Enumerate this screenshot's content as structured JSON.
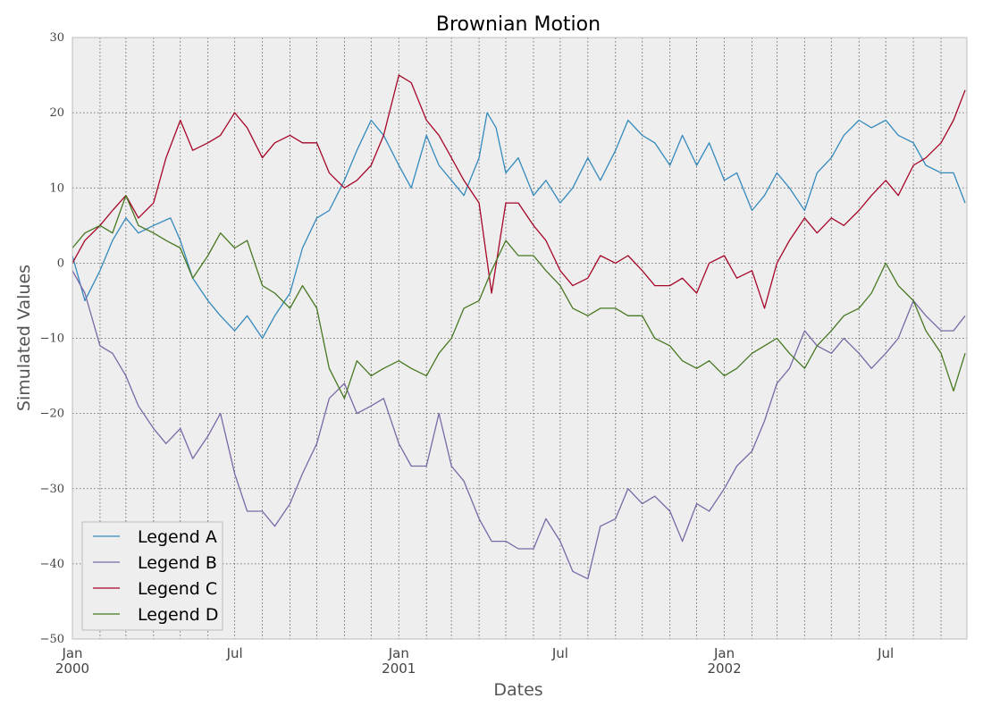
{
  "chart_data": {
    "type": "line",
    "title": "Brownian Motion",
    "xlabel": "Dates",
    "ylabel": "Simulated Values",
    "x_range": [
      "2000-01-01",
      "2002-09-30"
    ],
    "ylim": [
      -50,
      30
    ],
    "yticks": [
      -50,
      -40,
      -30,
      -20,
      -10,
      0,
      10,
      20,
      30
    ],
    "ytick_labels": [
      "−50",
      "−40",
      "−30",
      "−20",
      "−10",
      "0",
      "10",
      "20",
      "30"
    ],
    "xticks": [
      {
        "date": "2000-01-01",
        "label": "Jan",
        "sublabel": "2000"
      },
      {
        "date": "2000-07-01",
        "label": "Jul",
        "sublabel": ""
      },
      {
        "date": "2001-01-01",
        "label": "Jan",
        "sublabel": "2001"
      },
      {
        "date": "2001-07-01",
        "label": "Jul",
        "sublabel": ""
      },
      {
        "date": "2002-01-01",
        "label": "Jan",
        "sublabel": "2002"
      },
      {
        "date": "2002-07-01",
        "label": "Jul",
        "sublabel": ""
      }
    ],
    "minor_grid_dates": [
      "2000-02-01",
      "2000-03-01",
      "2000-04-01",
      "2000-05-01",
      "2000-06-01",
      "2000-08-01",
      "2000-09-01",
      "2000-10-01",
      "2000-11-01",
      "2000-12-01",
      "2001-02-01",
      "2001-03-01",
      "2001-04-01",
      "2001-05-01",
      "2001-06-01",
      "2001-08-01",
      "2001-09-01",
      "2001-10-01",
      "2001-11-01",
      "2001-12-01",
      "2002-02-01",
      "2002-03-01",
      "2002-04-01",
      "2002-05-01",
      "2002-06-01",
      "2002-08-01",
      "2002-09-01"
    ],
    "grid": true,
    "legend_position": "lower-left",
    "background_color": "#eeeeee",
    "series": [
      {
        "name": "Legend A",
        "color": "#348abd",
        "points": [
          [
            "2000-01-01",
            1
          ],
          [
            "2000-01-15",
            -5
          ],
          [
            "2000-02-01",
            -1
          ],
          [
            "2000-02-15",
            3
          ],
          [
            "2000-03-01",
            6
          ],
          [
            "2000-03-15",
            4
          ],
          [
            "2000-04-01",
            5
          ],
          [
            "2000-04-20",
            6
          ],
          [
            "2000-05-01",
            3
          ],
          [
            "2000-05-15",
            -2
          ],
          [
            "2000-06-01",
            -5
          ],
          [
            "2000-06-15",
            -7
          ],
          [
            "2000-07-01",
            -9
          ],
          [
            "2000-07-15",
            -7
          ],
          [
            "2000-08-01",
            -10
          ],
          [
            "2000-08-15",
            -7
          ],
          [
            "2000-09-01",
            -4
          ],
          [
            "2000-09-15",
            2
          ],
          [
            "2000-10-01",
            6
          ],
          [
            "2000-10-15",
            7
          ],
          [
            "2000-11-01",
            11
          ],
          [
            "2000-11-15",
            15
          ],
          [
            "2000-12-01",
            19
          ],
          [
            "2000-12-15",
            17
          ],
          [
            "2001-01-01",
            13
          ],
          [
            "2001-01-15",
            10
          ],
          [
            "2001-02-01",
            17
          ],
          [
            "2001-02-15",
            13
          ],
          [
            "2001-03-01",
            11
          ],
          [
            "2001-03-15",
            9
          ],
          [
            "2001-04-01",
            14
          ],
          [
            "2001-04-10",
            20
          ],
          [
            "2001-04-20",
            18
          ],
          [
            "2001-05-01",
            12
          ],
          [
            "2001-05-15",
            14
          ],
          [
            "2001-06-01",
            9
          ],
          [
            "2001-06-15",
            11
          ],
          [
            "2001-07-01",
            8
          ],
          [
            "2001-07-15",
            10
          ],
          [
            "2001-08-01",
            14
          ],
          [
            "2001-08-15",
            11
          ],
          [
            "2001-09-01",
            15
          ],
          [
            "2001-09-15",
            19
          ],
          [
            "2001-10-01",
            17
          ],
          [
            "2001-10-15",
            16
          ],
          [
            "2001-11-01",
            13
          ],
          [
            "2001-11-15",
            17
          ],
          [
            "2001-12-01",
            13
          ],
          [
            "2001-12-15",
            16
          ],
          [
            "2002-01-01",
            11
          ],
          [
            "2002-01-15",
            12
          ],
          [
            "2002-02-01",
            7
          ],
          [
            "2002-02-15",
            9
          ],
          [
            "2002-03-01",
            12
          ],
          [
            "2002-03-15",
            10
          ],
          [
            "2002-04-01",
            7
          ],
          [
            "2002-04-15",
            12
          ],
          [
            "2002-05-01",
            14
          ],
          [
            "2002-05-15",
            17
          ],
          [
            "2002-06-01",
            19
          ],
          [
            "2002-06-15",
            18
          ],
          [
            "2002-07-01",
            19
          ],
          [
            "2002-07-15",
            17
          ],
          [
            "2002-08-01",
            16
          ],
          [
            "2002-08-15",
            13
          ],
          [
            "2002-09-01",
            12
          ],
          [
            "2002-09-15",
            12
          ],
          [
            "2002-09-28",
            8
          ]
        ]
      },
      {
        "name": "Legend B",
        "color": "#7a68a6",
        "points": [
          [
            "2000-01-01",
            -1
          ],
          [
            "2000-01-15",
            -4
          ],
          [
            "2000-02-01",
            -11
          ],
          [
            "2000-02-15",
            -12
          ],
          [
            "2000-03-01",
            -15
          ],
          [
            "2000-03-15",
            -19
          ],
          [
            "2000-04-01",
            -22
          ],
          [
            "2000-04-15",
            -24
          ],
          [
            "2000-05-01",
            -22
          ],
          [
            "2000-05-15",
            -26
          ],
          [
            "2000-06-01",
            -23
          ],
          [
            "2000-06-15",
            -20
          ],
          [
            "2000-07-01",
            -28
          ],
          [
            "2000-07-15",
            -33
          ],
          [
            "2000-08-01",
            -33
          ],
          [
            "2000-08-15",
            -35
          ],
          [
            "2000-09-01",
            -32
          ],
          [
            "2000-09-15",
            -28
          ],
          [
            "2000-10-01",
            -24
          ],
          [
            "2000-10-15",
            -18
          ],
          [
            "2000-11-01",
            -16
          ],
          [
            "2000-11-15",
            -20
          ],
          [
            "2000-12-01",
            -19
          ],
          [
            "2000-12-15",
            -18
          ],
          [
            "2001-01-01",
            -24
          ],
          [
            "2001-01-15",
            -27
          ],
          [
            "2001-02-01",
            -27
          ],
          [
            "2001-02-15",
            -20
          ],
          [
            "2001-03-01",
            -27
          ],
          [
            "2001-03-15",
            -29
          ],
          [
            "2001-04-01",
            -34
          ],
          [
            "2001-04-15",
            -37
          ],
          [
            "2001-05-01",
            -37
          ],
          [
            "2001-05-15",
            -38
          ],
          [
            "2001-06-01",
            -38
          ],
          [
            "2001-06-15",
            -34
          ],
          [
            "2001-07-01",
            -37
          ],
          [
            "2001-07-15",
            -41
          ],
          [
            "2001-08-01",
            -42
          ],
          [
            "2001-08-15",
            -35
          ],
          [
            "2001-09-01",
            -34
          ],
          [
            "2001-09-15",
            -30
          ],
          [
            "2001-10-01",
            -32
          ],
          [
            "2001-10-15",
            -31
          ],
          [
            "2001-11-01",
            -33
          ],
          [
            "2001-11-15",
            -37
          ],
          [
            "2001-12-01",
            -32
          ],
          [
            "2001-12-15",
            -33
          ],
          [
            "2002-01-01",
            -30
          ],
          [
            "2002-01-15",
            -27
          ],
          [
            "2002-02-01",
            -25
          ],
          [
            "2002-02-15",
            -21
          ],
          [
            "2002-03-01",
            -16
          ],
          [
            "2002-03-15",
            -14
          ],
          [
            "2002-04-01",
            -9
          ],
          [
            "2002-04-15",
            -11
          ],
          [
            "2002-05-01",
            -12
          ],
          [
            "2002-05-15",
            -10
          ],
          [
            "2002-06-01",
            -12
          ],
          [
            "2002-06-15",
            -14
          ],
          [
            "2002-07-01",
            -12
          ],
          [
            "2002-07-15",
            -10
          ],
          [
            "2002-08-01",
            -5
          ],
          [
            "2002-08-15",
            -7
          ],
          [
            "2002-09-01",
            -9
          ],
          [
            "2002-09-15",
            -9
          ],
          [
            "2002-09-28",
            -7
          ]
        ]
      },
      {
        "name": "Legend C",
        "color": "#a60628",
        "points": [
          [
            "2000-01-01",
            0
          ],
          [
            "2000-01-15",
            3
          ],
          [
            "2000-02-01",
            5
          ],
          [
            "2000-02-15",
            7
          ],
          [
            "2000-03-01",
            9
          ],
          [
            "2000-03-15",
            6
          ],
          [
            "2000-04-01",
            8
          ],
          [
            "2000-04-15",
            14
          ],
          [
            "2000-05-01",
            19
          ],
          [
            "2000-05-15",
            15
          ],
          [
            "2000-06-01",
            16
          ],
          [
            "2000-06-15",
            17
          ],
          [
            "2000-07-01",
            20
          ],
          [
            "2000-07-15",
            18
          ],
          [
            "2000-08-01",
            14
          ],
          [
            "2000-08-15",
            16
          ],
          [
            "2000-09-01",
            17
          ],
          [
            "2000-09-15",
            16
          ],
          [
            "2000-10-01",
            16
          ],
          [
            "2000-10-15",
            12
          ],
          [
            "2000-11-01",
            10
          ],
          [
            "2000-11-15",
            11
          ],
          [
            "2000-12-01",
            13
          ],
          [
            "2000-12-15",
            17
          ],
          [
            "2001-01-01",
            25
          ],
          [
            "2001-01-15",
            24
          ],
          [
            "2001-02-01",
            19
          ],
          [
            "2001-02-15",
            17
          ],
          [
            "2001-03-01",
            14
          ],
          [
            "2001-03-15",
            11
          ],
          [
            "2001-04-01",
            8
          ],
          [
            "2001-04-15",
            -4
          ],
          [
            "2001-05-01",
            8
          ],
          [
            "2001-05-15",
            8
          ],
          [
            "2001-06-01",
            5
          ],
          [
            "2001-06-15",
            3
          ],
          [
            "2001-07-01",
            -1
          ],
          [
            "2001-07-15",
            -3
          ],
          [
            "2001-08-01",
            -2
          ],
          [
            "2001-08-15",
            1
          ],
          [
            "2001-09-01",
            0
          ],
          [
            "2001-09-15",
            1
          ],
          [
            "2001-10-01",
            -1
          ],
          [
            "2001-10-15",
            -3
          ],
          [
            "2001-11-01",
            -3
          ],
          [
            "2001-11-15",
            -2
          ],
          [
            "2001-12-01",
            -4
          ],
          [
            "2001-12-15",
            0
          ],
          [
            "2002-01-01",
            1
          ],
          [
            "2002-01-15",
            -2
          ],
          [
            "2002-02-01",
            -1
          ],
          [
            "2002-02-15",
            -6
          ],
          [
            "2002-03-01",
            0
          ],
          [
            "2002-03-15",
            3
          ],
          [
            "2002-04-01",
            6
          ],
          [
            "2002-04-15",
            4
          ],
          [
            "2002-05-01",
            6
          ],
          [
            "2002-05-15",
            5
          ],
          [
            "2002-06-01",
            7
          ],
          [
            "2002-06-15",
            9
          ],
          [
            "2002-07-01",
            11
          ],
          [
            "2002-07-15",
            9
          ],
          [
            "2002-08-01",
            13
          ],
          [
            "2002-08-15",
            14
          ],
          [
            "2002-09-01",
            16
          ],
          [
            "2002-09-15",
            19
          ],
          [
            "2002-09-28",
            23
          ]
        ]
      },
      {
        "name": "Legend D",
        "color": "#467821",
        "points": [
          [
            "2000-01-01",
            2
          ],
          [
            "2000-01-15",
            4
          ],
          [
            "2000-02-01",
            5
          ],
          [
            "2000-02-15",
            4
          ],
          [
            "2000-03-01",
            9
          ],
          [
            "2000-03-15",
            5
          ],
          [
            "2000-04-01",
            4
          ],
          [
            "2000-04-15",
            3
          ],
          [
            "2000-05-01",
            2
          ],
          [
            "2000-05-15",
            -2
          ],
          [
            "2000-06-01",
            1
          ],
          [
            "2000-06-15",
            4
          ],
          [
            "2000-07-01",
            2
          ],
          [
            "2000-07-15",
            3
          ],
          [
            "2000-08-01",
            -3
          ],
          [
            "2000-08-15",
            -4
          ],
          [
            "2000-09-01",
            -6
          ],
          [
            "2000-09-15",
            -3
          ],
          [
            "2000-10-01",
            -6
          ],
          [
            "2000-10-15",
            -14
          ],
          [
            "2000-11-01",
            -18
          ],
          [
            "2000-11-15",
            -13
          ],
          [
            "2000-12-01",
            -15
          ],
          [
            "2000-12-15",
            -14
          ],
          [
            "2001-01-01",
            -13
          ],
          [
            "2001-01-15",
            -14
          ],
          [
            "2001-02-01",
            -15
          ],
          [
            "2001-02-15",
            -12
          ],
          [
            "2001-03-01",
            -10
          ],
          [
            "2001-03-15",
            -6
          ],
          [
            "2001-04-01",
            -5
          ],
          [
            "2001-04-15",
            -1
          ],
          [
            "2001-05-01",
            3
          ],
          [
            "2001-05-15",
            1
          ],
          [
            "2001-06-01",
            1
          ],
          [
            "2001-06-15",
            -1
          ],
          [
            "2001-07-01",
            -3
          ],
          [
            "2001-07-15",
            -6
          ],
          [
            "2001-08-01",
            -7
          ],
          [
            "2001-08-15",
            -6
          ],
          [
            "2001-09-01",
            -6
          ],
          [
            "2001-09-15",
            -7
          ],
          [
            "2001-10-01",
            -7
          ],
          [
            "2001-10-15",
            -10
          ],
          [
            "2001-11-01",
            -11
          ],
          [
            "2001-11-15",
            -13
          ],
          [
            "2001-12-01",
            -14
          ],
          [
            "2001-12-15",
            -13
          ],
          [
            "2002-01-01",
            -15
          ],
          [
            "2002-01-15",
            -14
          ],
          [
            "2002-02-01",
            -12
          ],
          [
            "2002-02-15",
            -11
          ],
          [
            "2002-03-01",
            -10
          ],
          [
            "2002-03-15",
            -12
          ],
          [
            "2002-04-01",
            -14
          ],
          [
            "2002-04-15",
            -11
          ],
          [
            "2002-05-01",
            -9
          ],
          [
            "2002-05-15",
            -7
          ],
          [
            "2002-06-01",
            -6
          ],
          [
            "2002-06-15",
            -4
          ],
          [
            "2002-07-01",
            0
          ],
          [
            "2002-07-15",
            -3
          ],
          [
            "2002-08-01",
            -5
          ],
          [
            "2002-08-15",
            -9
          ],
          [
            "2002-09-01",
            -12
          ],
          [
            "2002-09-15",
            -17
          ],
          [
            "2002-09-28",
            -12
          ]
        ]
      }
    ]
  }
}
